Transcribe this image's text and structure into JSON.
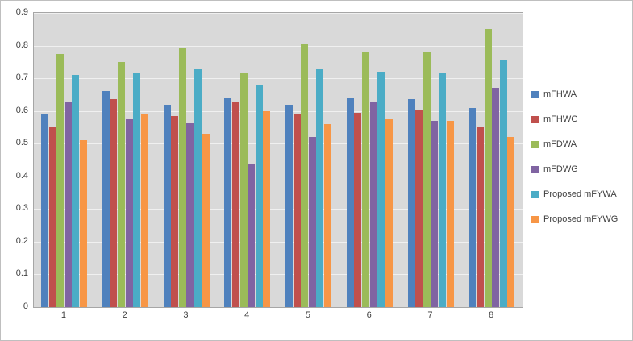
{
  "chart_data": {
    "type": "bar",
    "title": "",
    "xlabel": "",
    "ylabel": "",
    "categories": [
      "1",
      "2",
      "3",
      "4",
      "5",
      "6",
      "7",
      "8"
    ],
    "series": [
      {
        "name": "mFHWA",
        "color": "#4f81bd",
        "values": [
          0.59,
          0.66,
          0.62,
          0.64,
          0.62,
          0.64,
          0.635,
          0.61
        ]
      },
      {
        "name": "mFHWG",
        "color": "#c0504d",
        "values": [
          0.55,
          0.635,
          0.585,
          0.63,
          0.59,
          0.595,
          0.605,
          0.55
        ]
      },
      {
        "name": "mFDWA",
        "color": "#9bbb59",
        "values": [
          0.775,
          0.75,
          0.795,
          0.715,
          0.805,
          0.78,
          0.78,
          0.85
        ]
      },
      {
        "name": "mFDWG",
        "color": "#8064a2",
        "values": [
          0.63,
          0.575,
          0.565,
          0.44,
          0.52,
          0.63,
          0.57,
          0.67
        ]
      },
      {
        "name": "Proposed mFYWA",
        "color": "#4bacc6",
        "values": [
          0.71,
          0.715,
          0.73,
          0.68,
          0.73,
          0.72,
          0.715,
          0.755
        ]
      },
      {
        "name": "Proposed mFYWG",
        "color": "#f79646",
        "values": [
          0.51,
          0.59,
          0.53,
          0.6,
          0.56,
          0.575,
          0.57,
          0.52
        ]
      }
    ],
    "ylim": [
      0,
      0.9
    ],
    "ytick_step": 0.1,
    "grid": true,
    "legend_position": "right",
    "plot_background": "#d9d9d9",
    "gridline_color": "#f0f0f0"
  }
}
